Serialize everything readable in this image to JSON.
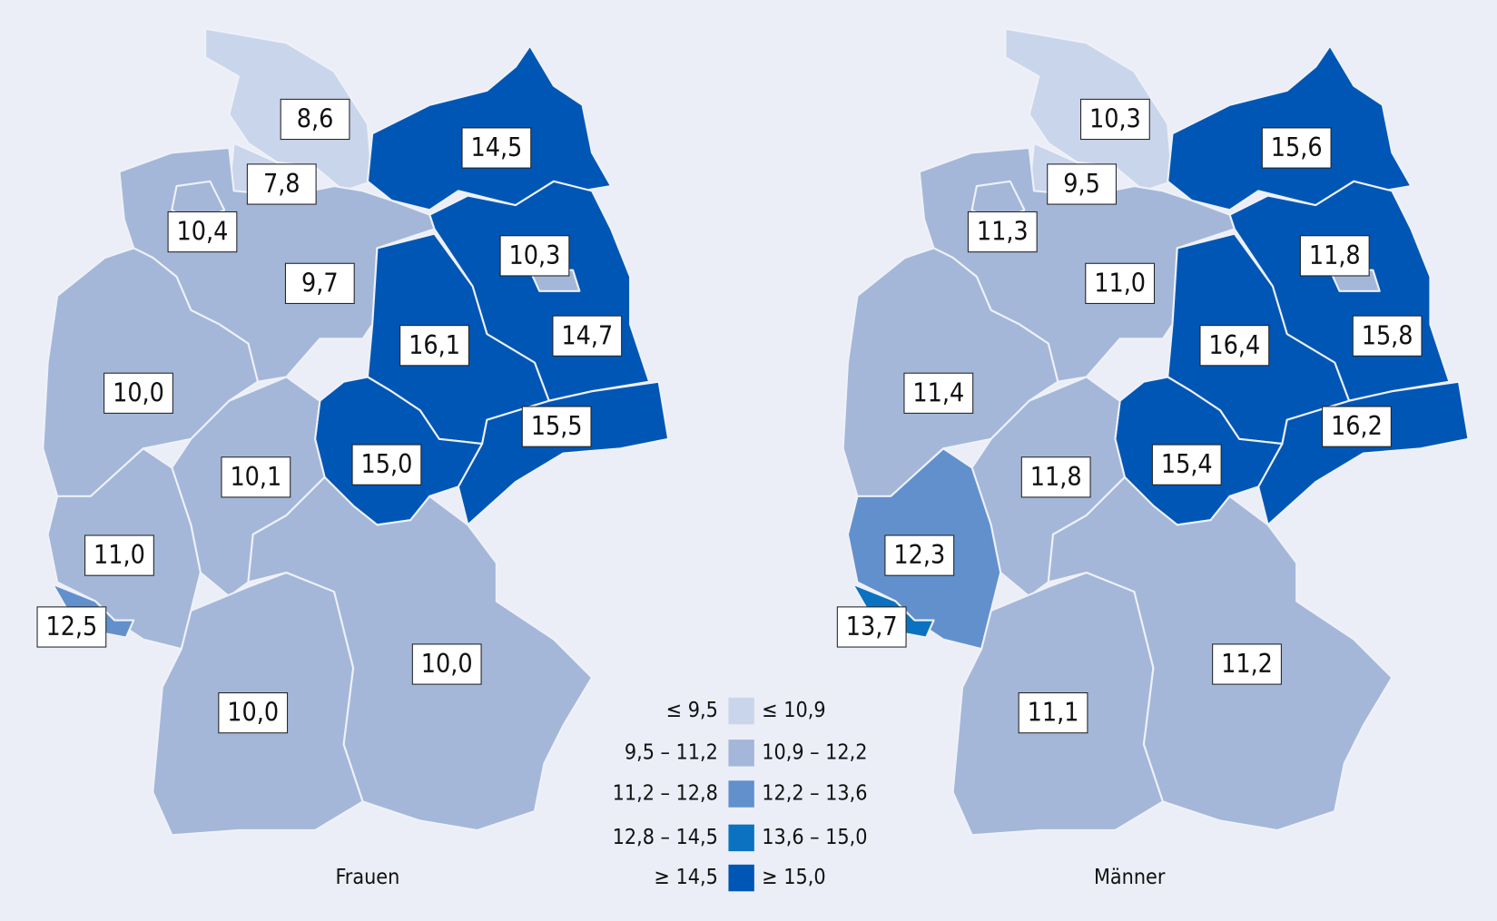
{
  "maps": [
    {
      "title": "Frauen",
      "regions": [
        {
          "label": "8,6",
          "color": "#c9d5ea"
        },
        {
          "label": "7,8",
          "color": "#c9d5ea"
        },
        {
          "label": "14,5",
          "color": "#0056b5"
        },
        {
          "label": "9,7",
          "color": "#a4b7d9"
        },
        {
          "label": "10,4",
          "color": "#a4b7d9"
        },
        {
          "label": "14,7",
          "color": "#0056b5"
        },
        {
          "label": "10,3",
          "color": "#a4b7d9"
        },
        {
          "label": "16,1",
          "color": "#0056b5"
        },
        {
          "label": "15,5",
          "color": "#0056b5"
        },
        {
          "label": "15,0",
          "color": "#0056b5"
        },
        {
          "label": "10,0",
          "color": "#a4b7d9"
        },
        {
          "label": "10,1",
          "color": "#a4b7d9"
        },
        {
          "label": "11,0",
          "color": "#a4b7d9"
        },
        {
          "label": "12,5",
          "color": "#6290cc"
        },
        {
          "label": "10,0",
          "color": "#a4b7d9"
        },
        {
          "label": "10,0",
          "color": "#a4b7d9"
        }
      ]
    },
    {
      "title": "Männer",
      "regions": [
        {
          "label": "10,3",
          "color": "#c9d5ea"
        },
        {
          "label": "9,5",
          "color": "#c9d5ea"
        },
        {
          "label": "15,6",
          "color": "#0056b5"
        },
        {
          "label": "11,0",
          "color": "#a4b7d9"
        },
        {
          "label": "11,3",
          "color": "#a4b7d9"
        },
        {
          "label": "15,8",
          "color": "#0056b5"
        },
        {
          "label": "11,8",
          "color": "#a4b7d9"
        },
        {
          "label": "16,4",
          "color": "#0056b5"
        },
        {
          "label": "16,2",
          "color": "#0056b5"
        },
        {
          "label": "15,4",
          "color": "#0056b5"
        },
        {
          "label": "11,4",
          "color": "#a4b7d9"
        },
        {
          "label": "11,8",
          "color": "#a4b7d9"
        },
        {
          "label": "12,3",
          "color": "#6290cc"
        },
        {
          "label": "13,7",
          "color": "#0a72c0"
        },
        {
          "label": "11,1",
          "color": "#a4b7d9"
        },
        {
          "label": "11,2",
          "color": "#a4b7d9"
        }
      ]
    }
  ],
  "legend": [
    {
      "left": "≤ 9,5",
      "right": "≤ 10,9",
      "color": "#c9d5ea"
    },
    {
      "left": "9,5 – 11,2",
      "right": "10,9 – 12,2",
      "color": "#a4b7d9"
    },
    {
      "left": "11,2 – 12,8",
      "right": "12,2 – 13,6",
      "color": "#6290cc"
    },
    {
      "left": "12,8 – 14,5",
      "right": "13,6 – 15,0",
      "color": "#0a72c0"
    },
    {
      "left": "≥ 14,5",
      "right": "≥ 15,0",
      "color": "#0056b5"
    }
  ]
}
